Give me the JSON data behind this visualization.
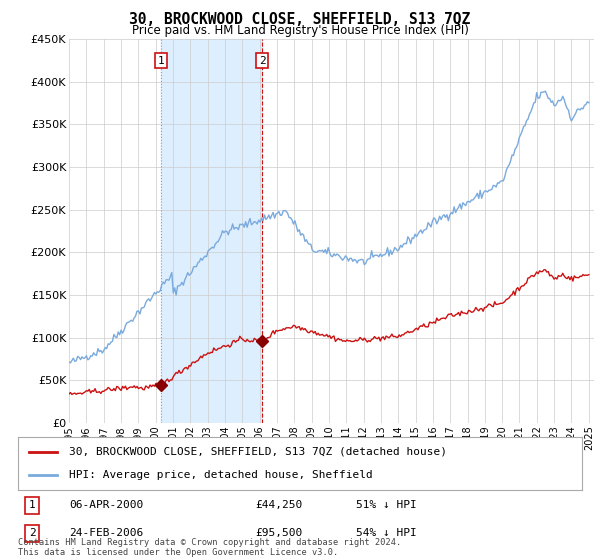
{
  "title": "30, BROCKWOOD CLOSE, SHEFFIELD, S13 7QZ",
  "subtitle": "Price paid vs. HM Land Registry's House Price Index (HPI)",
  "ylim": [
    0,
    450000
  ],
  "yticks": [
    0,
    50000,
    100000,
    150000,
    200000,
    250000,
    300000,
    350000,
    400000,
    450000
  ],
  "ytick_labels": [
    "£0",
    "£50K",
    "£100K",
    "£150K",
    "£200K",
    "£250K",
    "£300K",
    "£350K",
    "£400K",
    "£450K"
  ],
  "sale1_year": 2000.29,
  "sale1_price": 44250,
  "sale1_label": "1",
  "sale2_year": 2006.14,
  "sale2_price": 95500,
  "sale2_label": "2",
  "hpi_color": "#7aaadd",
  "sold_color": "#cc1111",
  "shade_color": "#ddeeff",
  "legend_sold_label": "30, BROCKWOOD CLOSE, SHEFFIELD, S13 7QZ (detached house)",
  "legend_hpi_label": "HPI: Average price, detached house, Sheffield",
  "table_rows": [
    {
      "label": "1",
      "date": "06-APR-2000",
      "price": "£44,250",
      "hpi": "51% ↓ HPI"
    },
    {
      "label": "2",
      "date": "24-FEB-2006",
      "price": "£95,500",
      "hpi": "54% ↓ HPI"
    }
  ],
  "footnote": "Contains HM Land Registry data © Crown copyright and database right 2024.\nThis data is licensed under the Open Government Licence v3.0.",
  "background_color": "#ffffff",
  "grid_color": "#cccccc"
}
